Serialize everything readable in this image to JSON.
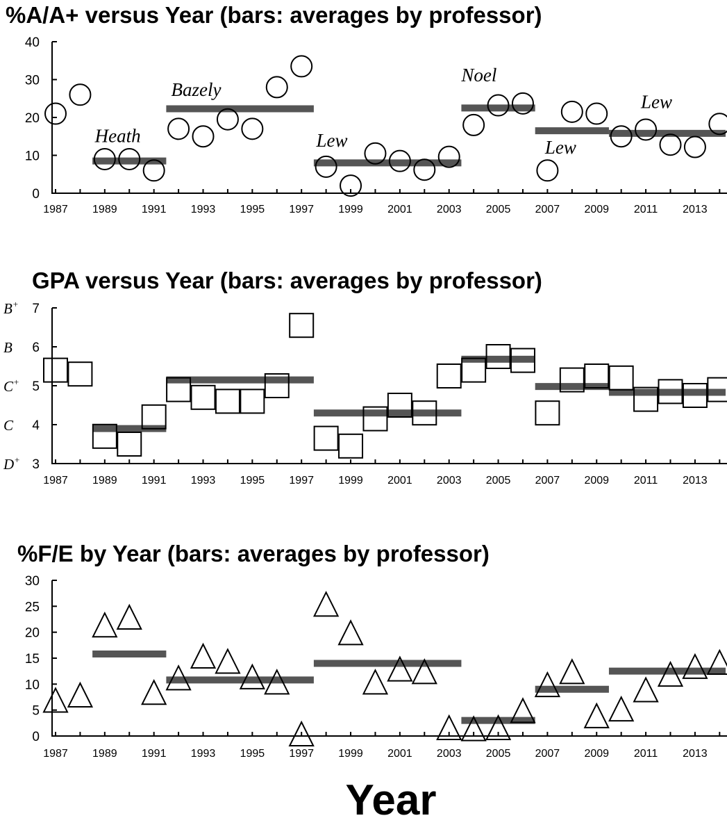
{
  "xlabel": "Year",
  "colors": {
    "bars": "#555555",
    "markers": "#000000",
    "background": "#ffffff"
  },
  "chart_data": [
    {
      "type": "scatter",
      "marker": "circle",
      "title": "%A/A+ versus Year (bars: averages by professor)",
      "x_ticks": [
        1987,
        1989,
        1991,
        1993,
        1995,
        1997,
        1999,
        2001,
        2003,
        2005,
        2007,
        2009,
        2011,
        2013
      ],
      "y_ticks": [
        0,
        10,
        20,
        30,
        40
      ],
      "ylim": [
        0,
        40
      ],
      "xlim": [
        1987,
        2014
      ],
      "points": [
        {
          "x": 1987,
          "y": 21
        },
        {
          "x": 1988,
          "y": 26
        },
        {
          "x": 1989,
          "y": 9
        },
        {
          "x": 1990,
          "y": 9
        },
        {
          "x": 1991,
          "y": 6
        },
        {
          "x": 1992,
          "y": 17
        },
        {
          "x": 1993,
          "y": 15
        },
        {
          "x": 1994,
          "y": 19.5
        },
        {
          "x": 1995,
          "y": 17
        },
        {
          "x": 1996,
          "y": 28
        },
        {
          "x": 1997,
          "y": 33.5
        },
        {
          "x": 1998,
          "y": 7
        },
        {
          "x": 1999,
          "y": 2
        },
        {
          "x": 2000,
          "y": 10.5
        },
        {
          "x": 2001,
          "y": 8.5
        },
        {
          "x": 2002,
          "y": 6.2
        },
        {
          "x": 2003,
          "y": 9.6
        },
        {
          "x": 2004,
          "y": 18
        },
        {
          "x": 2005,
          "y": 23.2
        },
        {
          "x": 2006,
          "y": 23.7
        },
        {
          "x": 2007,
          "y": 6
        },
        {
          "x": 2008,
          "y": 21.5
        },
        {
          "x": 2009,
          "y": 21
        },
        {
          "x": 2010,
          "y": 15
        },
        {
          "x": 2011,
          "y": 16.8
        },
        {
          "x": 2012,
          "y": 12.8
        },
        {
          "x": 2013,
          "y": 12.2
        },
        {
          "x": 2014,
          "y": 18.3
        }
      ],
      "averages": [
        {
          "professor": "Heath",
          "from": 1988.5,
          "to": 1991.5,
          "y": 8.5,
          "label_pos": {
            "x": 1988.6,
            "y": 13.5
          }
        },
        {
          "professor": "Bazely",
          "from": 1991.5,
          "to": 1997.5,
          "y": 22.3,
          "label_pos": {
            "x": 1991.7,
            "y": 25.7
          }
        },
        {
          "professor": "Lew",
          "from": 1997.5,
          "to": 2003.5,
          "y": 8,
          "label_pos": {
            "x": 1997.6,
            "y": 12.3
          }
        },
        {
          "professor": "Noel",
          "from": 2003.5,
          "to": 2006.5,
          "y": 22.5,
          "label_pos": {
            "x": 2003.5,
            "y": 29.5
          }
        },
        {
          "professor": "Lew",
          "from": 2006.5,
          "to": 2009.5,
          "y": 16.5,
          "label_pos": {
            "x": 2006.9,
            "y": 10.5
          }
        },
        {
          "professor": "Lew",
          "from": 2009.5,
          "to": 2014.5,
          "y": 15.8,
          "label_pos": {
            "x": 2010.8,
            "y": 22.5
          }
        }
      ]
    },
    {
      "type": "scatter",
      "marker": "square",
      "title": "GPA versus Year (bars: averages by professor)",
      "x_ticks": [
        1987,
        1989,
        1991,
        1993,
        1995,
        1997,
        1999,
        2001,
        2003,
        2005,
        2007,
        2009,
        2011,
        2013
      ],
      "y_ticks": [
        3,
        4,
        5,
        6,
        7
      ],
      "y_grade_labels": [
        "D+",
        "C",
        "C+",
        "B",
        "B+"
      ],
      "ylim": [
        3,
        7
      ],
      "xlim": [
        1987,
        2014
      ],
      "points": [
        {
          "x": 1987,
          "y": 5.4
        },
        {
          "x": 1988,
          "y": 5.3
        },
        {
          "x": 1989,
          "y": 3.7
        },
        {
          "x": 1990,
          "y": 3.5
        },
        {
          "x": 1991,
          "y": 4.2
        },
        {
          "x": 1992,
          "y": 4.9
        },
        {
          "x": 1993,
          "y": 4.7
        },
        {
          "x": 1994,
          "y": 4.6
        },
        {
          "x": 1995,
          "y": 4.6
        },
        {
          "x": 1996,
          "y": 5.0
        },
        {
          "x": 1997,
          "y": 6.55
        },
        {
          "x": 1998,
          "y": 3.65
        },
        {
          "x": 1999,
          "y": 3.45
        },
        {
          "x": 2000,
          "y": 4.15
        },
        {
          "x": 2001,
          "y": 4.5
        },
        {
          "x": 2002,
          "y": 4.3
        },
        {
          "x": 2003,
          "y": 5.25
        },
        {
          "x": 2004,
          "y": 5.4
        },
        {
          "x": 2005,
          "y": 5.75
        },
        {
          "x": 2006,
          "y": 5.65
        },
        {
          "x": 2007,
          "y": 4.3
        },
        {
          "x": 2008,
          "y": 5.15
        },
        {
          "x": 2009,
          "y": 5.25
        },
        {
          "x": 2010,
          "y": 5.2
        },
        {
          "x": 2011,
          "y": 4.65
        },
        {
          "x": 2012,
          "y": 4.85
        },
        {
          "x": 2013,
          "y": 4.75
        },
        {
          "x": 2014,
          "y": 4.9
        }
      ],
      "averages": [
        {
          "from": 1988.5,
          "to": 1991.5,
          "y": 3.9
        },
        {
          "from": 1991.5,
          "to": 1997.5,
          "y": 5.15
        },
        {
          "from": 1997.5,
          "to": 2003.5,
          "y": 4.3
        },
        {
          "from": 2003.5,
          "to": 2006.5,
          "y": 5.68
        },
        {
          "from": 2006.5,
          "to": 2009.5,
          "y": 4.98
        },
        {
          "from": 2009.5,
          "to": 2014.5,
          "y": 4.83
        }
      ]
    },
    {
      "type": "scatter",
      "marker": "triangle",
      "title": "%F/E by Year (bars: averages by professor)",
      "x_ticks": [
        1987,
        1989,
        1991,
        1993,
        1995,
        1997,
        1999,
        2001,
        2003,
        2005,
        2007,
        2009,
        2011,
        2013
      ],
      "y_ticks": [
        0,
        5,
        10,
        15,
        20,
        25,
        30
      ],
      "ylim": [
        0,
        30
      ],
      "xlim": [
        1987,
        2014
      ],
      "points": [
        {
          "x": 1987,
          "y": 6.5
        },
        {
          "x": 1988,
          "y": 7.5
        },
        {
          "x": 1989,
          "y": 21
        },
        {
          "x": 1990,
          "y": 22.5
        },
        {
          "x": 1991,
          "y": 8
        },
        {
          "x": 1992,
          "y": 10.8
        },
        {
          "x": 1993,
          "y": 15
        },
        {
          "x": 1994,
          "y": 14
        },
        {
          "x": 1995,
          "y": 11
        },
        {
          "x": 1996,
          "y": 10
        },
        {
          "x": 1997,
          "y": 0
        },
        {
          "x": 1998,
          "y": 25
        },
        {
          "x": 1999,
          "y": 19.5
        },
        {
          "x": 2000,
          "y": 10
        },
        {
          "x": 2001,
          "y": 12.5
        },
        {
          "x": 2002,
          "y": 12
        },
        {
          "x": 2003,
          "y": 1.2
        },
        {
          "x": 2004,
          "y": 1
        },
        {
          "x": 2005,
          "y": 1.2
        },
        {
          "x": 2006,
          "y": 4.5
        },
        {
          "x": 2007,
          "y": 9.5
        },
        {
          "x": 2008,
          "y": 12
        },
        {
          "x": 2009,
          "y": 3.5
        },
        {
          "x": 2010,
          "y": 4.8
        },
        {
          "x": 2011,
          "y": 8.5
        },
        {
          "x": 2012,
          "y": 11.5
        },
        {
          "x": 2013,
          "y": 13
        },
        {
          "x": 2014,
          "y": 13.8
        }
      ],
      "averages": [
        {
          "from": 1988.5,
          "to": 1991.5,
          "y": 15.8
        },
        {
          "from": 1991.5,
          "to": 1997.5,
          "y": 10.8
        },
        {
          "from": 1997.5,
          "to": 2003.5,
          "y": 14
        },
        {
          "from": 2003.5,
          "to": 2006.5,
          "y": 3
        },
        {
          "from": 2006.5,
          "to": 2009.5,
          "y": 9
        },
        {
          "from": 2009.5,
          "to": 2014.5,
          "y": 12.5
        }
      ]
    }
  ]
}
